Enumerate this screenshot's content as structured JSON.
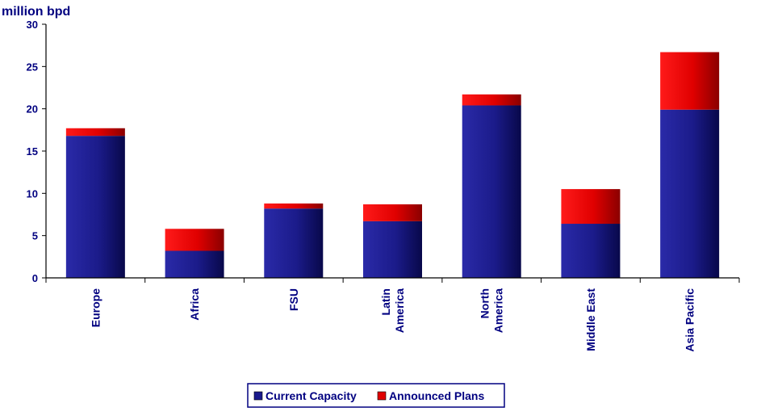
{
  "chart_data": {
    "type": "bar",
    "stacked": true,
    "ylabel": "million bpd",
    "ylim": [
      0,
      30
    ],
    "yticks": [
      0,
      5,
      10,
      15,
      20,
      25,
      30
    ],
    "categories": [
      [
        "Europe"
      ],
      [
        "Africa"
      ],
      [
        "FSU"
      ],
      [
        "Latin",
        "America"
      ],
      [
        "North",
        "America"
      ],
      [
        "Middle East"
      ],
      [
        "Asia Pacific"
      ]
    ],
    "series": [
      {
        "name": "Current Capacity",
        "color": "#1a1a8c",
        "values": [
          16.8,
          3.2,
          8.2,
          6.7,
          20.4,
          6.4,
          19.9
        ]
      },
      {
        "name": "Announced Plans",
        "color": "#e00000",
        "values": [
          0.9,
          2.6,
          0.6,
          2.0,
          1.3,
          4.1,
          6.8
        ]
      }
    ],
    "legend_position": "bottom"
  }
}
